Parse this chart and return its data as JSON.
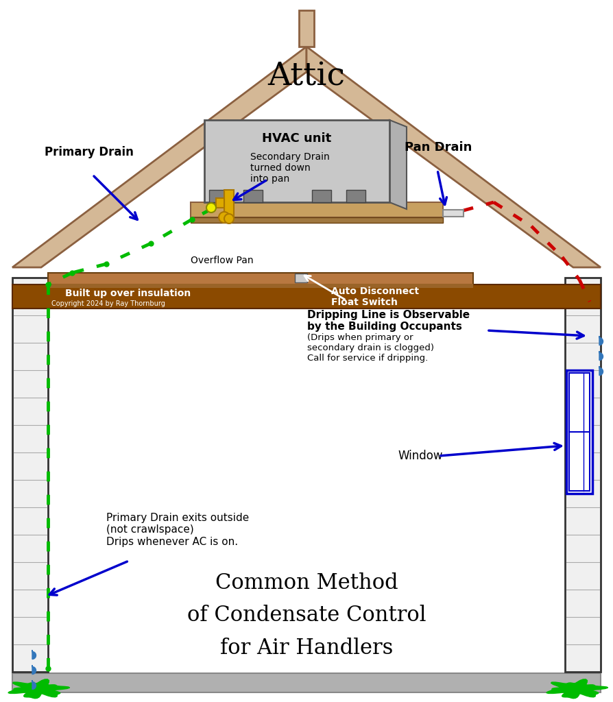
{
  "title": "Common Method\nof Condensate Control\nfor Air Handlers",
  "attic_label": "Attic",
  "copyright": "Copyright 2024 by Ray Thornburg",
  "bg_color": "#ffffff",
  "roof_color": "#d4b896",
  "roof_edge_color": "#8b6040",
  "wall_color": "#ffffff",
  "wall_edge_color": "#000000",
  "ceiling_color": "#8b4a00",
  "hvac_box_color": "#c0c0c0",
  "hvac_box_edge": "#555555",
  "pan_color": "#c8a060",
  "pan_edge": "#8b6040",
  "pipe_yellow": "#ccaa00",
  "pipe_gray": "#888888",
  "pipe_white": "#e0e0e0",
  "green_dot_color": "#00bb00",
  "red_dot_color": "#cc0000",
  "blue_arrow_color": "#0000cc",
  "water_drop_color": "#3377bb",
  "window_color": "#0000cc",
  "grass_color": "#00bb00",
  "foundation_color": "#b0b0b0",
  "brown_insulation": "#7a4500"
}
